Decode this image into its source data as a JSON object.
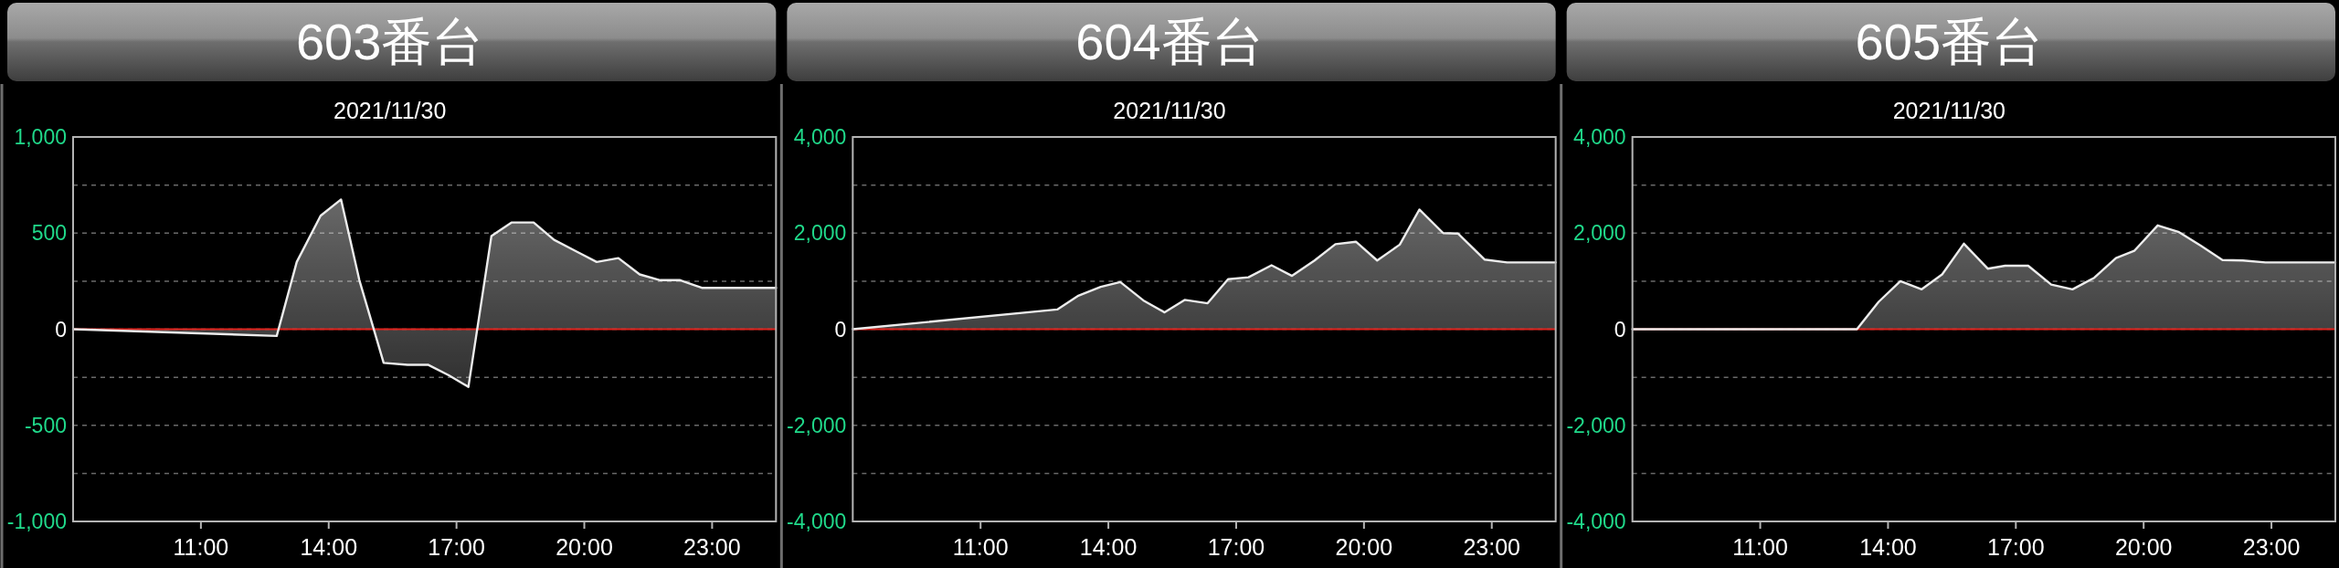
{
  "chart_data": [
    {
      "type": "area",
      "title": "603番台",
      "subtitle": "2021/11/30",
      "color": "#ececec",
      "x": [
        8,
        12.78,
        13.25,
        13.81,
        14.29,
        14.72,
        15.29,
        15.85,
        16.33,
        16.82,
        17.28,
        17.82,
        18.29,
        18.81,
        19.29,
        19.81,
        20.29,
        20.8,
        21.3,
        21.78,
        22.25,
        22.76,
        24.5
      ],
      "values": [
        0,
        -35,
        350,
        590,
        675,
        255,
        -175,
        -185,
        -185,
        -240,
        -300,
        485,
        555,
        555,
        465,
        405,
        350,
        370,
        285,
        255,
        255,
        215,
        215
      ],
      "xlim": [
        8,
        24.5
      ],
      "xticks": [
        {
          "value": 11,
          "label": "11:00"
        },
        {
          "value": 14,
          "label": "14:00"
        },
        {
          "value": 17,
          "label": "17:00"
        },
        {
          "value": 20,
          "label": "20:00"
        },
        {
          "value": 23,
          "label": "23:00"
        }
      ],
      "ylim": [
        -1000,
        1000
      ],
      "yticks": [
        {
          "value": -1000,
          "label": "-1,000"
        },
        {
          "value": -750,
          "label": null
        },
        -500,
        {
          "value": -250,
          "label": null
        },
        0,
        {
          "value": 250,
          "label": null
        },
        500,
        {
          "value": 750,
          "label": null
        },
        {
          "value": 1000,
          "label": "1,000"
        }
      ],
      "grid": "y",
      "ref_lines": [
        {
          "axis": "y",
          "value": 0,
          "color": "#e0231d"
        }
      ]
    },
    {
      "type": "area",
      "title": "604番台",
      "subtitle": "2021/11/30",
      "color": "#ececec",
      "x": [
        8,
        12.8,
        13.28,
        13.82,
        14.28,
        14.82,
        15.32,
        15.79,
        16.33,
        16.81,
        17.29,
        17.83,
        18.31,
        18.84,
        19.33,
        19.81,
        20.31,
        20.84,
        21.3,
        21.86,
        22.21,
        22.83,
        23.36,
        24.5
      ],
      "values": [
        0,
        410,
        690,
        880,
        980,
        600,
        350,
        610,
        540,
        1040,
        1080,
        1330,
        1110,
        1430,
        1770,
        1820,
        1430,
        1760,
        2490,
        2000,
        1990,
        1450,
        1390,
        1390
      ],
      "xlim": [
        8,
        24.5
      ],
      "xticks": [
        {
          "value": 11,
          "label": "11:00"
        },
        {
          "value": 14,
          "label": "14:00"
        },
        {
          "value": 17,
          "label": "17:00"
        },
        {
          "value": 20,
          "label": "20:00"
        },
        {
          "value": 23,
          "label": "23:00"
        }
      ],
      "ylim": [
        -4000,
        4000
      ],
      "yticks": [
        {
          "value": -4000,
          "label": "-4,000"
        },
        {
          "value": -3000,
          "label": null
        },
        {
          "value": -2000,
          "label": "-2,000"
        },
        {
          "value": -1000,
          "label": null
        },
        0,
        {
          "value": 1000,
          "label": null
        },
        {
          "value": 2000,
          "label": "2,000"
        },
        {
          "value": 3000,
          "label": null
        },
        {
          "value": 4000,
          "label": "4,000"
        }
      ],
      "grid": "y",
      "ref_lines": [
        {
          "axis": "y",
          "value": 0,
          "color": "#e0231d"
        }
      ]
    },
    {
      "type": "area",
      "title": "605番台",
      "subtitle": "2021/11/30",
      "color": "#ececec",
      "x": [
        8,
        13.27,
        13.78,
        14.29,
        14.79,
        15.27,
        15.78,
        16.34,
        16.75,
        17.29,
        17.83,
        18.33,
        18.84,
        19.35,
        19.78,
        20.33,
        20.83,
        21.34,
        21.85,
        22.33,
        22.86,
        24.5
      ],
      "values": [
        0,
        0,
        570,
        1000,
        830,
        1140,
        1780,
        1260,
        1320,
        1320,
        930,
        830,
        1070,
        1480,
        1630,
        2160,
        2020,
        1740,
        1440,
        1430,
        1390,
        1390
      ],
      "xlim": [
        8,
        24.5
      ],
      "xticks": [
        {
          "value": 11,
          "label": "11:00"
        },
        {
          "value": 14,
          "label": "14:00"
        },
        {
          "value": 17,
          "label": "17:00"
        },
        {
          "value": 20,
          "label": "20:00"
        },
        {
          "value": 23,
          "label": "23:00"
        }
      ],
      "ylim": [
        -4000,
        4000
      ],
      "yticks": [
        {
          "value": -4000,
          "label": "-4,000"
        },
        {
          "value": -3000,
          "label": null
        },
        {
          "value": -2000,
          "label": "-2,000"
        },
        {
          "value": -1000,
          "label": null
        },
        0,
        {
          "value": 1000,
          "label": null
        },
        {
          "value": 2000,
          "label": "2,000"
        },
        {
          "value": 3000,
          "label": null
        },
        {
          "value": 4000,
          "label": "4,000"
        }
      ],
      "grid": "y",
      "ref_lines": [
        {
          "axis": "y",
          "value": 0,
          "color": "#e0231d"
        }
      ]
    }
  ]
}
